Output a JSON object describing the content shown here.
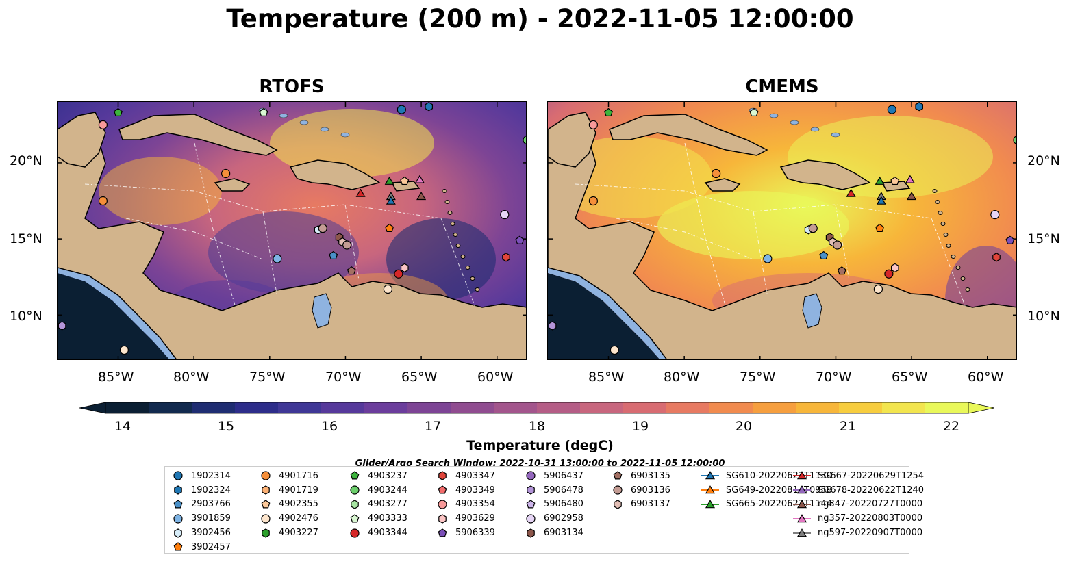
{
  "title": "Temperature (200 m) - 2022-11-05 12:00:00",
  "panels": [
    {
      "title": "RTOFS",
      "theme": "rtofs"
    },
    {
      "title": "CMEMS",
      "theme": "cmems"
    }
  ],
  "axes": {
    "lat_ticks": [
      "20°N",
      "15°N",
      "10°N"
    ],
    "lon_ticks": [
      "85°W",
      "80°W",
      "75°W",
      "70°W",
      "65°W",
      "60°W"
    ],
    "lon_range": [
      -89,
      -58
    ],
    "lat_range": [
      7,
      24
    ]
  },
  "colorbar": {
    "label": "Temperature (degC)",
    "ticks": [
      "14",
      "15",
      "16",
      "17",
      "18",
      "19",
      "20",
      "21",
      "22"
    ],
    "range": [
      14,
      22
    ],
    "colors": [
      "#0b1f33",
      "#122a4e",
      "#1f2d72",
      "#2d2d8a",
      "#3f3796",
      "#56399b",
      "#6b3d9c",
      "#7d4495",
      "#904c90",
      "#a3558c",
      "#b55d86",
      "#c8667e",
      "#d86c72",
      "#e77a62",
      "#f18b4f",
      "#f69f3f",
      "#f7b63a",
      "#f7cd3e",
      "#f2e54e",
      "#e9f85a"
    ]
  },
  "search_window": "Glider/Argo Search Window: 2022-10-31 13:00:00 to 2022-11-05 12:00:00",
  "legend": [
    {
      "label": "1902314",
      "marker": "circle",
      "color": "#1f77b4"
    },
    {
      "label": "1902324",
      "marker": "hexagon",
      "color": "#1f77b4"
    },
    {
      "label": "2903766",
      "marker": "pentagon",
      "color": "#4a90c8"
    },
    {
      "label": "3901859",
      "marker": "circle",
      "color": "#7eb4e5"
    },
    {
      "label": "3902456",
      "marker": "hexagon",
      "color": "#d6ecf8"
    },
    {
      "label": "3902457",
      "marker": "pentagon",
      "color": "#ff7f0e"
    },
    {
      "label": "4901716",
      "marker": "circle",
      "color": "#f58f3a"
    },
    {
      "label": "4901719",
      "marker": "hexagon",
      "color": "#fbb074"
    },
    {
      "label": "4902355",
      "marker": "pentagon",
      "color": "#fcc99a"
    },
    {
      "label": "4902476",
      "marker": "circle",
      "color": "#fde5cc"
    },
    {
      "label": "4903227",
      "marker": "hexagon",
      "color": "#2ca02c"
    },
    {
      "label": "4903237",
      "marker": "pentagon",
      "color": "#3cb43c"
    },
    {
      "label": "4903244",
      "marker": "circle",
      "color": "#6ccf6c"
    },
    {
      "label": "4903277",
      "marker": "hexagon",
      "color": "#a8e6a3"
    },
    {
      "label": "4903333",
      "marker": "pentagon",
      "color": "#d9f7d2"
    },
    {
      "label": "4903344",
      "marker": "circle",
      "color": "#d62728"
    },
    {
      "label": "4903347",
      "marker": "hexagon",
      "color": "#e0453b"
    },
    {
      "label": "4903349",
      "marker": "pentagon",
      "color": "#f26b6b"
    },
    {
      "label": "4903354",
      "marker": "circle",
      "color": "#f79999"
    },
    {
      "label": "4903629",
      "marker": "hexagon",
      "color": "#fcc5c5"
    },
    {
      "label": "5906339",
      "marker": "pentagon",
      "color": "#7b4fb8"
    },
    {
      "label": "5906437",
      "marker": "circle",
      "color": "#9467bd"
    },
    {
      "label": "5906478",
      "marker": "hexagon",
      "color": "#b394d8"
    },
    {
      "label": "5906480",
      "marker": "pentagon",
      "color": "#cdb5ea"
    },
    {
      "label": "6902958",
      "marker": "circle",
      "color": "#e6d5f5"
    },
    {
      "label": "6903134",
      "marker": "hexagon",
      "color": "#8c564b"
    },
    {
      "label": "6903135",
      "marker": "pentagon",
      "color": "#a37063"
    },
    {
      "label": "6903136",
      "marker": "circle",
      "color": "#c49c94"
    },
    {
      "label": "6903137",
      "marker": "hexagon",
      "color": "#e3bfb6"
    },
    {
      "label": "SG610-20220621T1130",
      "marker": "triangle",
      "color": "#1f77b4"
    },
    {
      "label": "SG649-20220814T0958",
      "marker": "triangle",
      "color": "#ff7f0e"
    },
    {
      "label": "SG665-20220623T1144",
      "marker": "triangle",
      "color": "#2ca02c"
    },
    {
      "label": "SG667-20220629T1254",
      "marker": "triangle",
      "color": "#d62728"
    },
    {
      "label": "SG678-20220622T1240",
      "marker": "triangle",
      "color": "#9467bd"
    },
    {
      "label": "ng347-20220727T0000",
      "marker": "triangle",
      "color": "#8c564b"
    },
    {
      "label": "ng357-20220803T0000",
      "marker": "triangle",
      "color": "#e377c2"
    },
    {
      "label": "ng597-20220907T0000",
      "marker": "triangle",
      "color": "#7f7f7f"
    }
  ],
  "platforms": [
    {
      "id": "4903237",
      "lon": -85.0,
      "lat": 23.3
    },
    {
      "id": "4903333",
      "lon": -75.4,
      "lat": 23.3
    },
    {
      "id": "1902314",
      "lon": -66.3,
      "lat": 23.5
    },
    {
      "id": "1902324",
      "lon": -64.5,
      "lat": 23.7
    },
    {
      "id": "4903354",
      "lon": -86.0,
      "lat": 22.5
    },
    {
      "id": "4903244",
      "lon": -58.0,
      "lat": 21.5
    },
    {
      "id": "4901716",
      "lon": -77.9,
      "lat": 19.3
    },
    {
      "id": "4901716",
      "lon": -86.0,
      "lat": 17.5
    },
    {
      "id": "SG665-20220623T1144",
      "lon": -67.1,
      "lat": 18.8
    },
    {
      "id": "4902355",
      "lon": -66.1,
      "lat": 18.8
    },
    {
      "id": "ng357-20220803T0000",
      "lon": -65.1,
      "lat": 18.9
    },
    {
      "id": "SG667-20220629T1254",
      "lon": -69.0,
      "lat": 18.0
    },
    {
      "id": "ng597-20220907T0000",
      "lon": -67.0,
      "lat": 17.8
    },
    {
      "id": "SG610-20220621T1130",
      "lon": -67.0,
      "lat": 17.5
    },
    {
      "id": "ng347-20220727T0000",
      "lon": -65.0,
      "lat": 17.8
    },
    {
      "id": "6902958",
      "lon": -59.5,
      "lat": 16.6
    },
    {
      "id": "3902457",
      "lon": -67.1,
      "lat": 15.7
    },
    {
      "id": "3902456",
      "lon": -71.8,
      "lat": 15.6
    },
    {
      "id": "6903136",
      "lon": -71.5,
      "lat": 15.7
    },
    {
      "id": "6903134",
      "lon": -70.4,
      "lat": 15.1
    },
    {
      "id": "6903137",
      "lon": -70.2,
      "lat": 14.8
    },
    {
      "id": "6903136",
      "lon": -69.9,
      "lat": 14.6
    },
    {
      "id": "5906339",
      "lon": -58.5,
      "lat": 14.9
    },
    {
      "id": "2903766",
      "lon": -70.8,
      "lat": 13.9
    },
    {
      "id": "3901859",
      "lon": -74.5,
      "lat": 13.7
    },
    {
      "id": "4903347",
      "lon": -59.4,
      "lat": 13.8
    },
    {
      "id": "4903629",
      "lon": -66.1,
      "lat": 13.1
    },
    {
      "id": "4903344",
      "lon": -66.5,
      "lat": 12.7
    },
    {
      "id": "6903135",
      "lon": -69.6,
      "lat": 12.9
    },
    {
      "id": "4902476",
      "lon": -67.2,
      "lat": 11.7
    },
    {
      "id": "5906478",
      "lon": -88.7,
      "lat": 9.3
    },
    {
      "id": "4902476",
      "lon": -84.6,
      "lat": 7.7
    }
  ]
}
